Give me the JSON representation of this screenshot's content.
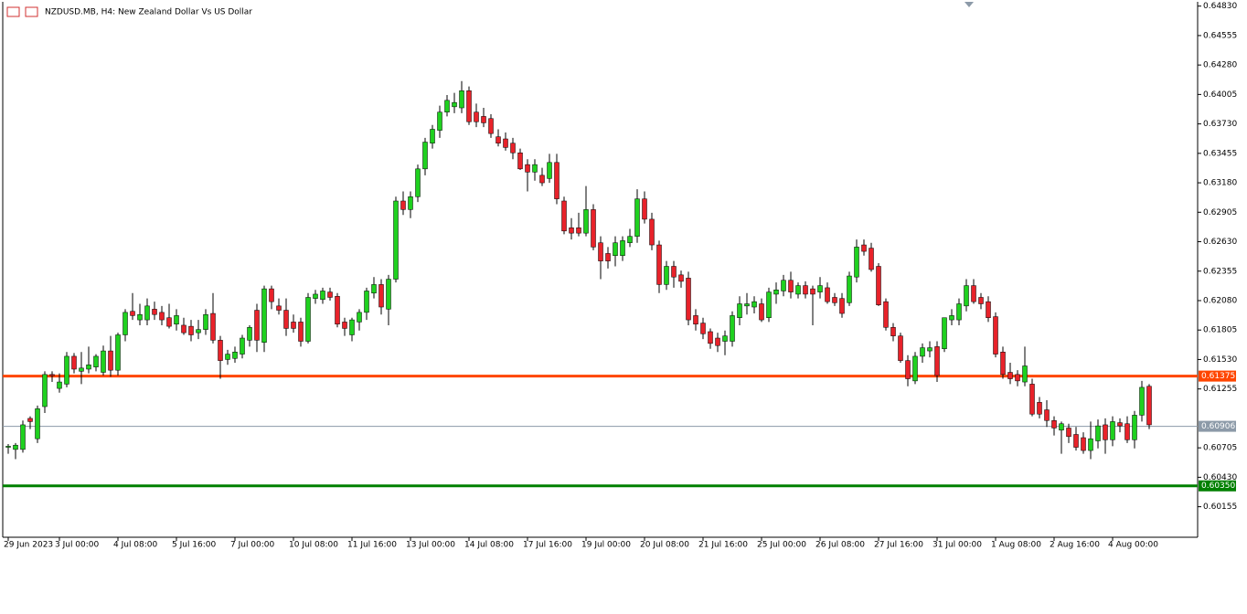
{
  "chart_data": {
    "type": "candlestick",
    "title": "NZDUSD.MB, H4:  New Zealand Dollar Vs US Dollar",
    "up_color": "#1fd11f",
    "down_color": "#e8222a",
    "ylim": [
      0.5987,
      0.6487
    ],
    "yticks": [
      {
        "value": 0.6483,
        "label": "0.64830"
      },
      {
        "value": 0.64555,
        "label": "0.64555"
      },
      {
        "value": 0.6428,
        "label": "0.64280"
      },
      {
        "value": 0.64005,
        "label": "0.64005"
      },
      {
        "value": 0.6373,
        "label": "0.63730"
      },
      {
        "value": 0.63455,
        "label": "0.63455"
      },
      {
        "value": 0.6318,
        "label": "0.63180"
      },
      {
        "value": 0.62905,
        "label": "0.62905"
      },
      {
        "value": 0.6263,
        "label": "0.62630"
      },
      {
        "value": 0.62355,
        "label": "0.62355"
      },
      {
        "value": 0.6208,
        "label": "0.62080"
      },
      {
        "value": 0.61805,
        "label": "0.61805"
      },
      {
        "value": 0.6153,
        "label": "0.61530"
      },
      {
        "value": 0.61255,
        "label": "0.61255"
      },
      {
        "value": 0.60705,
        "label": "0.60705"
      },
      {
        "value": 0.6043,
        "label": "0.60430"
      },
      {
        "value": 0.60155,
        "label": "0.60155"
      }
    ],
    "levels": [
      {
        "value": 0.61375,
        "label": "0.61375",
        "color": "#ff4500"
      },
      {
        "value": 0.6035,
        "label": "0.60350",
        "color": "#008000"
      }
    ],
    "bid": {
      "value": 0.60906,
      "label": "0.60906",
      "color": "#8c9aa8"
    },
    "categories": [
      "29 Jun 2023",
      null,
      null,
      null,
      null,
      null,
      null,
      "3 Jul 00:00",
      null,
      null,
      null,
      null,
      null,
      null,
      null,
      "4 Jul 08:00",
      null,
      null,
      null,
      null,
      null,
      null,
      null,
      "5 Jul 16:00",
      null,
      null,
      null,
      null,
      null,
      null,
      null,
      "7 Jul 00:00",
      null,
      null,
      null,
      null,
      null,
      null,
      null,
      "10 Jul 08:00",
      null,
      null,
      null,
      null,
      null,
      null,
      null,
      "11 Jul 16:00",
      null,
      null,
      null,
      null,
      null,
      null,
      null,
      "13 Jul 00:00",
      null,
      null,
      null,
      null,
      null,
      null,
      null,
      "14 Jul 08:00",
      null,
      null,
      null,
      null,
      null,
      null,
      null,
      "17 Jul 16:00",
      null,
      null,
      null,
      null,
      null,
      null,
      null,
      "19 Jul 00:00",
      null,
      null,
      null,
      null,
      null,
      null,
      null,
      "20 Jul 08:00",
      null,
      null,
      null,
      null,
      null,
      null,
      null,
      "21 Jul 16:00",
      null,
      null,
      null,
      null,
      null,
      null,
      null,
      "25 Jul 00:00",
      null,
      null,
      null,
      null,
      null,
      null,
      null,
      "26 Jul 08:00",
      null,
      null,
      null,
      null,
      null,
      null,
      null,
      "27 Jul 16:00",
      null,
      null,
      null,
      null,
      null,
      null,
      null,
      "31 Jul 00:00",
      null,
      null,
      null,
      null,
      null,
      null,
      null,
      "1 Aug 08:00",
      null,
      null,
      null,
      null,
      null,
      null,
      null,
      "2 Aug 16:00",
      null,
      null,
      null,
      null,
      null,
      null,
      null,
      "4 Aug 00:00",
      null,
      null,
      null,
      null,
      null
    ],
    "ohlc": [
      [
        0.6071,
        0.6074,
        0.6065,
        0.6072
      ],
      [
        0.6069,
        0.6075,
        0.606,
        0.6073
      ],
      [
        0.6069,
        0.6096,
        0.6066,
        0.6092
      ],
      [
        0.6098,
        0.61,
        0.6088,
        0.6095
      ],
      [
        0.6079,
        0.611,
        0.6075,
        0.6107
      ],
      [
        0.6109,
        0.6142,
        0.6103,
        0.6139
      ],
      [
        0.6139,
        0.6142,
        0.6132,
        0.6138
      ],
      [
        0.6126,
        0.614,
        0.6122,
        0.6132
      ],
      [
        0.613,
        0.616,
        0.6127,
        0.6156
      ],
      [
        0.6156,
        0.6159,
        0.614,
        0.6144
      ],
      [
        0.6142,
        0.616,
        0.613,
        0.6145
      ],
      [
        0.6144,
        0.6165,
        0.614,
        0.6148
      ],
      [
        0.6146,
        0.6158,
        0.6142,
        0.6156
      ],
      [
        0.6141,
        0.6166,
        0.6138,
        0.6161
      ],
      [
        0.6161,
        0.6175,
        0.6137,
        0.6143
      ],
      [
        0.6143,
        0.6178,
        0.6138,
        0.6176
      ],
      [
        0.6176,
        0.62,
        0.617,
        0.6197
      ],
      [
        0.6198,
        0.6215,
        0.619,
        0.6194
      ],
      [
        0.619,
        0.6205,
        0.6185,
        0.6195
      ],
      [
        0.619,
        0.621,
        0.6185,
        0.6203
      ],
      [
        0.62,
        0.6207,
        0.619,
        0.6195
      ],
      [
        0.6197,
        0.6203,
        0.6185,
        0.619
      ],
      [
        0.6192,
        0.6205,
        0.6182,
        0.6184
      ],
      [
        0.6186,
        0.62,
        0.618,
        0.6194
      ],
      [
        0.6185,
        0.6192,
        0.6176,
        0.6178
      ],
      [
        0.6184,
        0.619,
        0.617,
        0.6176
      ],
      [
        0.6178,
        0.619,
        0.6172,
        0.6181
      ],
      [
        0.6181,
        0.62,
        0.6176,
        0.6195
      ],
      [
        0.6196,
        0.6215,
        0.6168,
        0.6171
      ],
      [
        0.6171,
        0.6175,
        0.6135,
        0.6152
      ],
      [
        0.6153,
        0.6162,
        0.6148,
        0.6158
      ],
      [
        0.6154,
        0.6165,
        0.615,
        0.616
      ],
      [
        0.6158,
        0.6176,
        0.6154,
        0.6173
      ],
      [
        0.6171,
        0.6185,
        0.6165,
        0.6183
      ],
      [
        0.6199,
        0.6205,
        0.616,
        0.6171
      ],
      [
        0.6169,
        0.6222,
        0.616,
        0.6219
      ],
      [
        0.6219,
        0.6222,
        0.62,
        0.6207
      ],
      [
        0.6203,
        0.621,
        0.6195,
        0.6199
      ],
      [
        0.6199,
        0.621,
        0.6175,
        0.6182
      ],
      [
        0.6188,
        0.6195,
        0.6178,
        0.6182
      ],
      [
        0.6188,
        0.6192,
        0.6165,
        0.617
      ],
      [
        0.617,
        0.6215,
        0.6168,
        0.6211
      ],
      [
        0.621,
        0.6218,
        0.6205,
        0.6214
      ],
      [
        0.6209,
        0.622,
        0.6205,
        0.6217
      ],
      [
        0.6216,
        0.622,
        0.6208,
        0.6211
      ],
      [
        0.6212,
        0.6215,
        0.6183,
        0.6186
      ],
      [
        0.6188,
        0.6192,
        0.6175,
        0.6182
      ],
      [
        0.6176,
        0.6192,
        0.617,
        0.619
      ],
      [
        0.6188,
        0.62,
        0.618,
        0.6197
      ],
      [
        0.6197,
        0.622,
        0.619,
        0.6217
      ],
      [
        0.6215,
        0.623,
        0.621,
        0.6223
      ],
      [
        0.6223,
        0.6228,
        0.6195,
        0.6202
      ],
      [
        0.62,
        0.6232,
        0.6185,
        0.6228
      ],
      [
        0.6228,
        0.6305,
        0.6225,
        0.6301
      ],
      [
        0.6301,
        0.631,
        0.6288,
        0.6293
      ],
      [
        0.6293,
        0.631,
        0.6285,
        0.6305
      ],
      [
        0.6305,
        0.6335,
        0.63,
        0.6331
      ],
      [
        0.6331,
        0.636,
        0.6325,
        0.6356
      ],
      [
        0.6355,
        0.6372,
        0.635,
        0.6368
      ],
      [
        0.6367,
        0.639,
        0.636,
        0.6384
      ],
      [
        0.6384,
        0.64,
        0.638,
        0.6395
      ],
      [
        0.6389,
        0.6402,
        0.6383,
        0.6393
      ],
      [
        0.6388,
        0.6413,
        0.6383,
        0.6404
      ],
      [
        0.6404,
        0.6408,
        0.6372,
        0.6375
      ],
      [
        0.6384,
        0.6392,
        0.637,
        0.6375
      ],
      [
        0.638,
        0.6388,
        0.637,
        0.6374
      ],
      [
        0.6378,
        0.6382,
        0.636,
        0.6364
      ],
      [
        0.6361,
        0.6368,
        0.6352,
        0.6355
      ],
      [
        0.6359,
        0.6365,
        0.6348,
        0.6351
      ],
      [
        0.6355,
        0.636,
        0.634,
        0.6346
      ],
      [
        0.6346,
        0.635,
        0.633,
        0.6331
      ],
      [
        0.6335,
        0.634,
        0.631,
        0.6328
      ],
      [
        0.6328,
        0.634,
        0.632,
        0.6335
      ],
      [
        0.6325,
        0.6332,
        0.6315,
        0.6318
      ],
      [
        0.6322,
        0.6345,
        0.6318,
        0.6337
      ],
      [
        0.6337,
        0.6345,
        0.6298,
        0.6303
      ],
      [
        0.6301,
        0.6305,
        0.627,
        0.6273
      ],
      [
        0.6276,
        0.6285,
        0.6265,
        0.6271
      ],
      [
        0.6276,
        0.629,
        0.6268,
        0.6271
      ],
      [
        0.6271,
        0.6315,
        0.6268,
        0.6293
      ],
      [
        0.6293,
        0.6298,
        0.6255,
        0.6258
      ],
      [
        0.6262,
        0.6268,
        0.6228,
        0.6245
      ],
      [
        0.6252,
        0.6258,
        0.6238,
        0.6245
      ],
      [
        0.625,
        0.6268,
        0.624,
        0.6262
      ],
      [
        0.625,
        0.6268,
        0.6245,
        0.6264
      ],
      [
        0.6262,
        0.6275,
        0.6258,
        0.6268
      ],
      [
        0.6268,
        0.6312,
        0.6262,
        0.6303
      ],
      [
        0.6303,
        0.631,
        0.628,
        0.6284
      ],
      [
        0.6284,
        0.629,
        0.6255,
        0.626
      ],
      [
        0.626,
        0.6264,
        0.6215,
        0.6223
      ],
      [
        0.6223,
        0.6245,
        0.6218,
        0.624
      ],
      [
        0.624,
        0.6245,
        0.622,
        0.623
      ],
      [
        0.6232,
        0.6236,
        0.622,
        0.6226
      ],
      [
        0.6229,
        0.6235,
        0.6185,
        0.619
      ],
      [
        0.6194,
        0.62,
        0.618,
        0.6186
      ],
      [
        0.6187,
        0.6192,
        0.6172,
        0.6177
      ],
      [
        0.6179,
        0.6182,
        0.6163,
        0.6168
      ],
      [
        0.6173,
        0.6178,
        0.616,
        0.6166
      ],
      [
        0.617,
        0.618,
        0.6157,
        0.6175
      ],
      [
        0.617,
        0.6198,
        0.6165,
        0.6194
      ],
      [
        0.6192,
        0.6212,
        0.6185,
        0.6205
      ],
      [
        0.6203,
        0.6215,
        0.6195,
        0.6205
      ],
      [
        0.6202,
        0.6212,
        0.6196,
        0.6207
      ],
      [
        0.6205,
        0.621,
        0.6188,
        0.619
      ],
      [
        0.6192,
        0.622,
        0.6188,
        0.6216
      ],
      [
        0.6214,
        0.6225,
        0.6205,
        0.6218
      ],
      [
        0.6217,
        0.6232,
        0.6212,
        0.6227
      ],
      [
        0.6227,
        0.6235,
        0.621,
        0.6216
      ],
      [
        0.6214,
        0.6225,
        0.621,
        0.6222
      ],
      [
        0.6222,
        0.6226,
        0.621,
        0.6214
      ],
      [
        0.6219,
        0.6222,
        0.6185,
        0.6214
      ],
      [
        0.6216,
        0.623,
        0.621,
        0.6222
      ],
      [
        0.622,
        0.6225,
        0.6205,
        0.6207
      ],
      [
        0.6211,
        0.6215,
        0.6203,
        0.6206
      ],
      [
        0.621,
        0.6215,
        0.6192,
        0.6196
      ],
      [
        0.6206,
        0.6235,
        0.6203,
        0.6231
      ],
      [
        0.623,
        0.6265,
        0.6225,
        0.6258
      ],
      [
        0.626,
        0.6265,
        0.625,
        0.6254
      ],
      [
        0.6257,
        0.6262,
        0.6235,
        0.6237
      ],
      [
        0.624,
        0.6243,
        0.6203,
        0.6204
      ],
      [
        0.6207,
        0.621,
        0.618,
        0.6183
      ],
      [
        0.6183,
        0.6187,
        0.617,
        0.6175
      ],
      [
        0.6175,
        0.6178,
        0.615,
        0.6152
      ],
      [
        0.6152,
        0.6157,
        0.6128,
        0.6135
      ],
      [
        0.6133,
        0.616,
        0.613,
        0.6156
      ],
      [
        0.6156,
        0.6168,
        0.615,
        0.6164
      ],
      [
        0.6161,
        0.617,
        0.6155,
        0.6164
      ],
      [
        0.6165,
        0.617,
        0.6132,
        0.6138
      ],
      [
        0.6163,
        0.6192,
        0.616,
        0.6192
      ],
      [
        0.619,
        0.62,
        0.6185,
        0.6194
      ],
      [
        0.619,
        0.621,
        0.6185,
        0.6205
      ],
      [
        0.6203,
        0.6228,
        0.6198,
        0.6222
      ],
      [
        0.6222,
        0.6228,
        0.6205,
        0.6207
      ],
      [
        0.6211,
        0.6215,
        0.62,
        0.6205
      ],
      [
        0.6207,
        0.6212,
        0.6188,
        0.6192
      ],
      [
        0.6193,
        0.6197,
        0.6155,
        0.6158
      ],
      [
        0.616,
        0.6165,
        0.6135,
        0.6139
      ],
      [
        0.6141,
        0.615,
        0.613,
        0.6135
      ],
      [
        0.6139,
        0.6143,
        0.6128,
        0.6133
      ],
      [
        0.6132,
        0.6165,
        0.6128,
        0.6147
      ],
      [
        0.613,
        0.6135,
        0.61,
        0.6102
      ],
      [
        0.6113,
        0.6118,
        0.6098,
        0.6102
      ],
      [
        0.6106,
        0.6115,
        0.609,
        0.6096
      ],
      [
        0.6096,
        0.61,
        0.6082,
        0.6089
      ],
      [
        0.6087,
        0.6095,
        0.6065,
        0.6093
      ],
      [
        0.6089,
        0.6093,
        0.6075,
        0.6081
      ],
      [
        0.6083,
        0.609,
        0.6068,
        0.6071
      ],
      [
        0.608,
        0.6085,
        0.6065,
        0.6068
      ],
      [
        0.6068,
        0.6095,
        0.606,
        0.6079
      ],
      [
        0.6077,
        0.6097,
        0.607,
        0.6091
      ],
      [
        0.6092,
        0.6098,
        0.6065,
        0.6078
      ],
      [
        0.6078,
        0.61,
        0.6072,
        0.6095
      ],
      [
        0.6094,
        0.6098,
        0.6085,
        0.6091
      ],
      [
        0.6093,
        0.61,
        0.6075,
        0.6078
      ],
      [
        0.6078,
        0.6105,
        0.607,
        0.6101
      ],
      [
        0.6101,
        0.6133,
        0.6095,
        0.6127
      ],
      [
        0.6128,
        0.613,
        0.6088,
        0.6092
      ]
    ]
  }
}
